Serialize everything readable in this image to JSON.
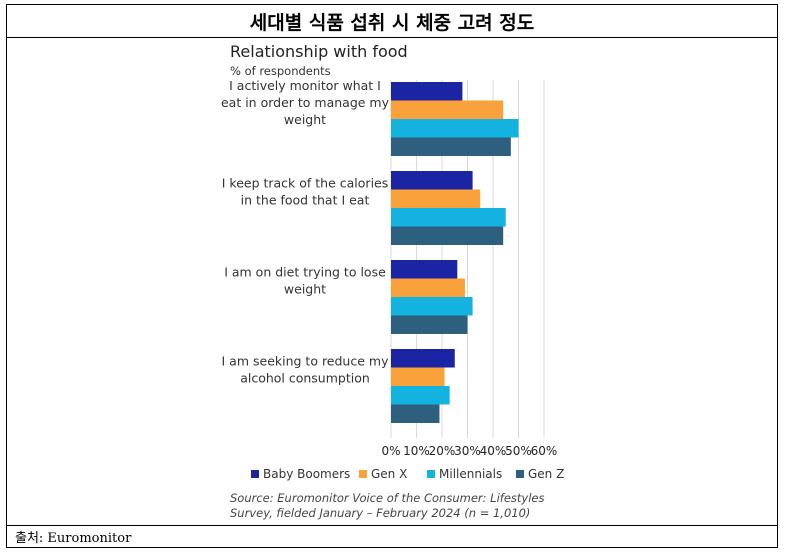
{
  "header": {
    "title": "세대별 식품 섭취 시 체중 고려 정도"
  },
  "footer": {
    "source_label": "출처: Euromonitor"
  },
  "colors": {
    "baby_boomers": "#1b24a3",
    "gen_x": "#f9a23b",
    "millennials": "#14b2df",
    "gen_z": "#2f5f7e",
    "grid": "#d9d9d9",
    "text": "#333333"
  },
  "chart_data": {
    "type": "bar",
    "orientation": "horizontal",
    "title": "Relationship with food",
    "subtitle": "% of respondents",
    "categories": [
      [
        "I actively monitor what I",
        "eat in order to manage my",
        "weight"
      ],
      [
        "I keep track of the calories",
        "in the food that I eat"
      ],
      [
        "I am on diet trying to lose",
        "weight"
      ],
      [
        "I am seeking to reduce my",
        "alcohol consumption"
      ]
    ],
    "series": [
      {
        "name": "Baby Boomers",
        "color": "#1b24a3",
        "values": [
          28,
          32,
          26,
          25
        ]
      },
      {
        "name": "Gen X",
        "color": "#f9a23b",
        "values": [
          44,
          35,
          29,
          21
        ]
      },
      {
        "name": "Millennials",
        "color": "#14b2df",
        "values": [
          50,
          45,
          32,
          23
        ]
      },
      {
        "name": "Gen Z",
        "color": "#2f5f7e",
        "values": [
          47,
          44,
          30,
          19
        ]
      }
    ],
    "xlim": [
      0,
      60
    ],
    "xticks": [
      "0%",
      "10%",
      "20%",
      "30%",
      "40%",
      "50%",
      "60%"
    ],
    "grid": true,
    "legend_position": "bottom",
    "note": [
      "Source: Euromonitor Voice of the Consumer: Lifestyles",
      "Survey, fielded January – February 2024 (n = 1,010)"
    ]
  }
}
